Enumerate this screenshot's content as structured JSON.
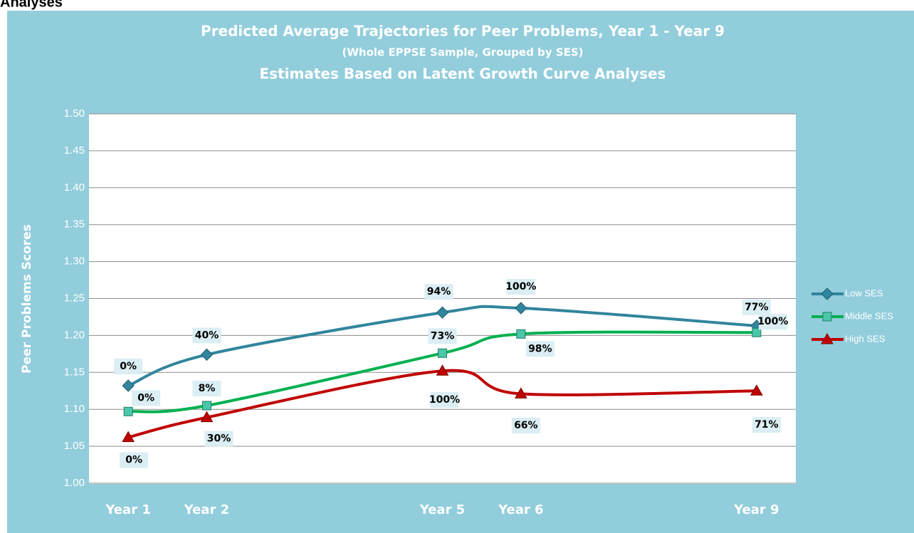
{
  "page_heading": "Analyses",
  "chart_data": {
    "type": "line",
    "title": "Predicted Average Trajectories for Peer Problems, Year 1 - Year 9",
    "subtitle": "(Whole EPPSE Sample, Grouped by SES)",
    "subtitle2": "Estimates Based on Latent Growth Curve Analyses",
    "y_label": "Peer Problems Scores",
    "x": [
      1,
      2,
      5,
      6,
      9
    ],
    "xlim": [
      0.5,
      9.5
    ],
    "xticks": [
      {
        "value": 1,
        "label": "Year 1"
      },
      {
        "value": 2,
        "label": "Year 2"
      },
      {
        "value": 5,
        "label": "Year 5"
      },
      {
        "value": 6,
        "label": "Year 6"
      },
      {
        "value": 9,
        "label": "Year 9"
      }
    ],
    "ylim": [
      1.0,
      1.5
    ],
    "yticks": [
      {
        "value": 1.0,
        "label": "1.00"
      },
      {
        "value": 1.05,
        "label": "1.05"
      },
      {
        "value": 1.1,
        "label": "1.10"
      },
      {
        "value": 1.15,
        "label": "1.15"
      },
      {
        "value": 1.2,
        "label": "1.20"
      },
      {
        "value": 1.25,
        "label": "1.25"
      },
      {
        "value": 1.3,
        "label": "1.30"
      },
      {
        "value": 1.35,
        "label": "1.35"
      },
      {
        "value": 1.4,
        "label": "1.40"
      },
      {
        "value": 1.45,
        "label": "1.45"
      },
      {
        "value": 1.5,
        "label": "1.50"
      }
    ],
    "grid": true,
    "legend": "right",
    "series": [
      {
        "name": "Low SES",
        "color": "#31859c",
        "marker": "diamond",
        "values": [
          1.132,
          1.174,
          1.231,
          1.237,
          1.213
        ],
        "point_labels": [
          "0%",
          "40%",
          "94%",
          "100%",
          "77%"
        ]
      },
      {
        "name": "Middle SES",
        "color": "#00b050",
        "marker": "square",
        "values": [
          1.097,
          1.105,
          1.176,
          1.202,
          1.204
        ],
        "point_labels": [
          "0%",
          "8%",
          "73%",
          "98%",
          "100%"
        ]
      },
      {
        "name": "High SES",
        "color": "#c00000",
        "marker": "triangle",
        "values": [
          1.062,
          1.089,
          1.152,
          1.121,
          1.125
        ],
        "point_labels": [
          "0%",
          "30%",
          "100%",
          "66%",
          "71%"
        ]
      }
    ]
  }
}
